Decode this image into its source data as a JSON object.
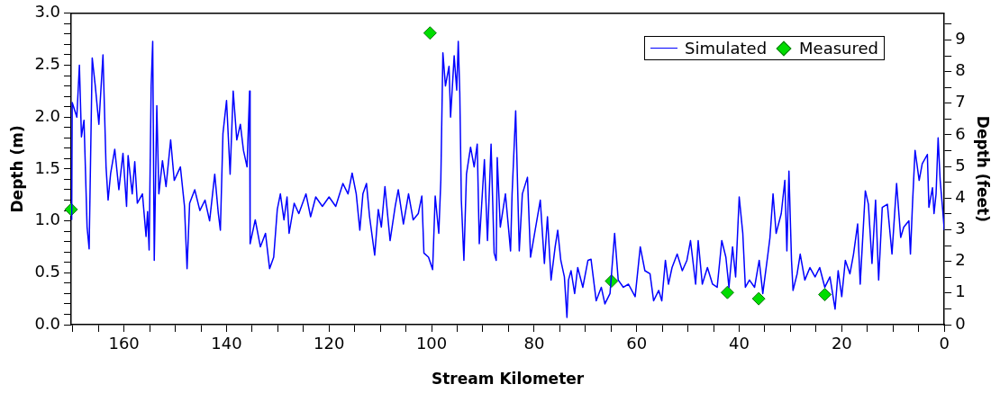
{
  "chart_data": {
    "type": "line",
    "xlabel": "Stream Kilometer",
    "ylabel": "Depth (m)",
    "y2label": "Depth (feet)",
    "xlim": [
      170.3,
      0
    ],
    "xticks": [
      {
        "value": 170,
        "label": null
      },
      {
        "value": 165,
        "label": null
      },
      160,
      {
        "value": 155,
        "label": null
      },
      {
        "value": 150,
        "label": null
      },
      {
        "value": 145,
        "label": null
      },
      140,
      {
        "value": 135,
        "label": null
      },
      {
        "value": 130,
        "label": null
      },
      {
        "value": 125,
        "label": null
      },
      120,
      {
        "value": 115,
        "label": null
      },
      {
        "value": 110,
        "label": null
      },
      {
        "value": 105,
        "label": null
      },
      100,
      {
        "value": 95,
        "label": null
      },
      {
        "value": 90,
        "label": null
      },
      {
        "value": 85,
        "label": null
      },
      80,
      {
        "value": 75,
        "label": null
      },
      {
        "value": 70,
        "label": null
      },
      {
        "value": 65,
        "label": null
      },
      60,
      {
        "value": 55,
        "label": null
      },
      {
        "value": 50,
        "label": null
      },
      {
        "value": 45,
        "label": null
      },
      40,
      {
        "value": 35,
        "label": null
      },
      {
        "value": 30,
        "label": null
      },
      {
        "value": 25,
        "label": null
      },
      20,
      {
        "value": 15,
        "label": null
      },
      {
        "value": 10,
        "label": null
      },
      {
        "value": 5,
        "label": null
      },
      0
    ],
    "ylim": [
      0,
      3
    ],
    "yticks": [
      {
        "value": 0,
        "label": "0.0"
      },
      {
        "value": 0.1,
        "label": null
      },
      {
        "value": 0.2,
        "label": null
      },
      {
        "value": 0.3,
        "label": null
      },
      {
        "value": 0.4,
        "label": null
      },
      0.5,
      {
        "value": 0.6,
        "label": null
      },
      {
        "value": 0.7,
        "label": null
      },
      {
        "value": 0.8,
        "label": null
      },
      {
        "value": 0.9,
        "label": null
      },
      {
        "value": 1,
        "label": "1.0"
      },
      {
        "value": 1.1,
        "label": null
      },
      {
        "value": 1.2,
        "label": null
      },
      {
        "value": 1.3,
        "label": null
      },
      {
        "value": 1.4,
        "label": null
      },
      1.5,
      {
        "value": 1.6,
        "label": null
      },
      {
        "value": 1.7,
        "label": null
      },
      {
        "value": 1.8,
        "label": null
      },
      {
        "value": 1.9,
        "label": null
      },
      {
        "value": 2,
        "label": "2.0"
      },
      {
        "value": 2.1,
        "label": null
      },
      {
        "value": 2.2,
        "label": null
      },
      {
        "value": 2.3,
        "label": null
      },
      {
        "value": 2.4,
        "label": null
      },
      2.5,
      {
        "value": 2.6,
        "label": null
      },
      {
        "value": 2.7,
        "label": null
      },
      {
        "value": 2.8,
        "label": null
      },
      {
        "value": 2.9,
        "label": null
      },
      {
        "value": 3,
        "label": "3.0"
      }
    ],
    "y2lim": [
      0,
      9.843
    ],
    "y2ticks": [
      0,
      {
        "value": 0.5,
        "label": null
      },
      1,
      {
        "value": 1.5,
        "label": null
      },
      2,
      {
        "value": 2.5,
        "label": null
      },
      3,
      {
        "value": 3.5,
        "label": null
      },
      4,
      {
        "value": 4.5,
        "label": null
      },
      5,
      {
        "value": 5.5,
        "label": null
      },
      6,
      {
        "value": 6.5,
        "label": null
      },
      7,
      {
        "value": 7.5,
        "label": null
      },
      8,
      {
        "value": 8.5,
        "label": null
      },
      9,
      {
        "value": 9.5,
        "label": null
      }
    ],
    "grid": false,
    "legend": "top right",
    "series": [
      {
        "name": "Simulated",
        "color": "#0000ff",
        "marker": "none",
        "line_style": "solid",
        "x": [
          170.2,
          170.1,
          169.2,
          168.7,
          168.3,
          167.8,
          167.2,
          166.8,
          166.2,
          165.6,
          164.9,
          164.1,
          163.5,
          163.1,
          162.6,
          161.8,
          161.0,
          160.2,
          159.5,
          159.2,
          158.4,
          157.9,
          157.4,
          156.4,
          155.7,
          155.4,
          155.1,
          154.7,
          154.4,
          154.1,
          153.6,
          153.2,
          152.5,
          151.8,
          150.9,
          150.2,
          149.0,
          148.2,
          147.7,
          147.2,
          146.2,
          145.2,
          144.2,
          143.3,
          142.3,
          141.6,
          141.2,
          140.7,
          140.0,
          139.3,
          138.7,
          138.0,
          137.3,
          136.7,
          136.0,
          135.5,
          135.4,
          134.4,
          133.4,
          132.4,
          131.6,
          130.8,
          130.1,
          129.5,
          128.8,
          128.2,
          127.8,
          126.8,
          125.9,
          124.5,
          123.6,
          122.6,
          121.3,
          120.0,
          118.7,
          117.3,
          116.3,
          115.5,
          114.7,
          114.0,
          113.4,
          112.7,
          112.1,
          111.1,
          110.4,
          109.8,
          109.1,
          108.1,
          107.1,
          106.5,
          105.5,
          104.5,
          103.6,
          102.6,
          101.9,
          101.5,
          100.6,
          99.8,
          99.3,
          98.6,
          98.2,
          97.8,
          97.3,
          96.6,
          96.3,
          95.6,
          95.1,
          94.8,
          94.5,
          94.2,
          93.7,
          93.2,
          92.4,
          91.7,
          91.1,
          90.7,
          89.7,
          89.1,
          88.4,
          87.8,
          87.4,
          87.2,
          86.6,
          85.6,
          84.6,
          84.3,
          83.6,
          82.9,
          82.3,
          81.3,
          80.7,
          79.7,
          78.8,
          78.0,
          77.4,
          76.7,
          75.9,
          75.4,
          74.8,
          74.1,
          73.6,
          73.3,
          72.8,
          72.1,
          71.5,
          70.5,
          69.5,
          68.9,
          67.9,
          66.9,
          66.2,
          65.2,
          64.3,
          63.6,
          62.6,
          61.6,
          60.3,
          59.3,
          58.4,
          57.4,
          56.7,
          55.7,
          55.1,
          54.4,
          53.8,
          53.1,
          52.1,
          51.1,
          50.2,
          49.5,
          48.5,
          48.0,
          47.2,
          46.2,
          45.2,
          44.3,
          43.4,
          42.6,
          42.0,
          41.3,
          40.7,
          40.0,
          39.3,
          38.8,
          38.0,
          37.0,
          36.1,
          35.4,
          34.4,
          34.0,
          33.4,
          32.8,
          31.8,
          31.1,
          30.7,
          30.3,
          29.8,
          29.5,
          28.7,
          28.1,
          27.2,
          26.2,
          25.2,
          24.3,
          23.3,
          22.3,
          21.3,
          20.7,
          20.0,
          19.3,
          18.4,
          17.7,
          16.9,
          16.4,
          15.4,
          14.8,
          14.1,
          13.4,
          12.8,
          12.1,
          11.1,
          10.2,
          9.3,
          8.5,
          7.9,
          6.9,
          6.6,
          6.2,
          5.7,
          4.9,
          4.3,
          3.3,
          3.0,
          2.3,
          2.0,
          1.6,
          1.2,
          0.8,
          0.3,
          0.0
        ],
        "values": [
          1.01,
          2.14,
          2.0,
          2.5,
          1.81,
          1.97,
          0.94,
          0.73,
          2.57,
          2.3,
          1.93,
          2.6,
          1.52,
          1.2,
          1.46,
          1.69,
          1.3,
          1.65,
          1.14,
          1.63,
          1.26,
          1.57,
          1.17,
          1.26,
          0.85,
          1.09,
          0.72,
          2.3,
          2.73,
          0.62,
          2.11,
          1.26,
          1.58,
          1.33,
          1.78,
          1.39,
          1.52,
          1.14,
          0.54,
          1.17,
          1.3,
          1.1,
          1.2,
          1.0,
          1.45,
          1.07,
          0.91,
          1.84,
          2.16,
          1.45,
          2.25,
          1.78,
          1.93,
          1.68,
          1.52,
          2.25,
          0.78,
          1.01,
          0.75,
          0.88,
          0.54,
          0.65,
          1.11,
          1.26,
          1.01,
          1.23,
          0.88,
          1.17,
          1.07,
          1.26,
          1.04,
          1.23,
          1.14,
          1.23,
          1.14,
          1.36,
          1.26,
          1.46,
          1.26,
          0.91,
          1.26,
          1.36,
          1.04,
          0.67,
          1.11,
          0.94,
          1.33,
          0.81,
          1.14,
          1.3,
          0.97,
          1.26,
          1.01,
          1.07,
          1.24,
          0.69,
          0.65,
          0.53,
          1.24,
          0.88,
          1.39,
          2.62,
          2.3,
          2.49,
          2.0,
          2.59,
          2.26,
          2.73,
          2.23,
          1.2,
          0.62,
          1.45,
          1.71,
          1.52,
          1.74,
          0.78,
          1.59,
          0.81,
          1.74,
          0.69,
          0.62,
          1.61,
          0.94,
          1.26,
          0.71,
          1.26,
          2.06,
          0.71,
          1.26,
          1.42,
          0.65,
          0.94,
          1.2,
          0.59,
          1.04,
          0.43,
          0.75,
          0.91,
          0.62,
          0.46,
          0.07,
          0.43,
          0.52,
          0.3,
          0.55,
          0.36,
          0.62,
          0.63,
          0.23,
          0.36,
          0.2,
          0.3,
          0.88,
          0.43,
          0.36,
          0.39,
          0.27,
          0.75,
          0.52,
          0.49,
          0.23,
          0.33,
          0.23,
          0.62,
          0.39,
          0.55,
          0.68,
          0.52,
          0.62,
          0.81,
          0.39,
          0.81,
          0.39,
          0.55,
          0.39,
          0.36,
          0.81,
          0.65,
          0.36,
          0.75,
          0.46,
          1.23,
          0.88,
          0.36,
          0.43,
          0.36,
          0.62,
          0.3,
          0.68,
          0.84,
          1.26,
          0.88,
          1.07,
          1.39,
          0.71,
          1.48,
          0.62,
          0.33,
          0.49,
          0.68,
          0.43,
          0.55,
          0.46,
          0.55,
          0.36,
          0.46,
          0.15,
          0.52,
          0.27,
          0.62,
          0.49,
          0.68,
          0.97,
          0.39,
          1.29,
          1.16,
          0.59,
          1.2,
          0.43,
          1.13,
          1.16,
          0.68,
          1.36,
          0.84,
          0.94,
          1.0,
          0.68,
          1.16,
          1.68,
          1.39,
          1.55,
          1.64,
          1.13,
          1.32,
          1.07,
          1.26,
          1.8,
          1.39,
          1.1,
          0.91
        ]
      },
      {
        "name": "Measured",
        "type": "scatter",
        "color": "#00dd00",
        "marker": "diamond",
        "x": [
          170.3,
          100.3,
          64.9,
          42.3,
          36.2,
          23.3
        ],
        "values": [
          1.11,
          2.81,
          0.42,
          0.31,
          0.25,
          0.29
        ]
      }
    ]
  }
}
